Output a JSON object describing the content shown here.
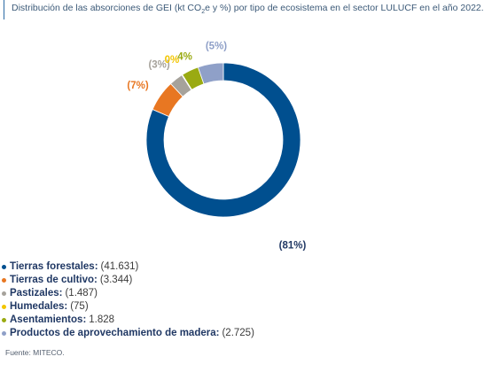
{
  "header": {
    "title_pre": "Distribución de las absorciones de GEI (kt CO",
    "title_sub": "2",
    "title_post": "e y %) por tipo de ecosistema en el sector LULUCF en el año 2022."
  },
  "chart_data": {
    "type": "pie",
    "variant": "donut",
    "categories": [
      "Tierras forestales",
      "Tierras de cultivo",
      "Pastizales",
      "Humedales",
      "Asentamientos",
      "Productos de aprovechamiento de madera"
    ],
    "values": [
      41631,
      3344,
      1487,
      75,
      1828,
      2725
    ],
    "value_labels": [
      "(41.631)",
      "(3.344)",
      "(1.487)",
      "(75)",
      "1.828",
      "(2.725)"
    ],
    "percent_labels": [
      "(81%)",
      "(7%)",
      "(3%)",
      "0%",
      "4%",
      "(5%)"
    ],
    "colors": [
      "#004f8f",
      "#e87722",
      "#a6a29b",
      "#f2c500",
      "#9aaa12",
      "#8fa0c8"
    ],
    "legend_position": "bottom-left",
    "start_angle_deg": 0,
    "direction": "clockwise"
  },
  "legend": {
    "items": [
      {
        "name": "Tierras forestales",
        "value": "(41.631)",
        "color": "#004f8f"
      },
      {
        "name": "Tierras de cultivo",
        "value": "(3.344)",
        "color": "#e87722"
      },
      {
        "name": "Pastizales",
        "value": "(1.487)",
        "color": "#a6a29b"
      },
      {
        "name": "Humedales",
        "value": "(75)",
        "color": "#f2c500"
      },
      {
        "name": "Asentamientos",
        "value": "1.828",
        "color": "#9aaa12"
      },
      {
        "name": "Productos de aprovechamiento de madera",
        "value": "(2.725)",
        "color": "#8fa0c8"
      }
    ]
  },
  "source": "Fuente: MITECO."
}
